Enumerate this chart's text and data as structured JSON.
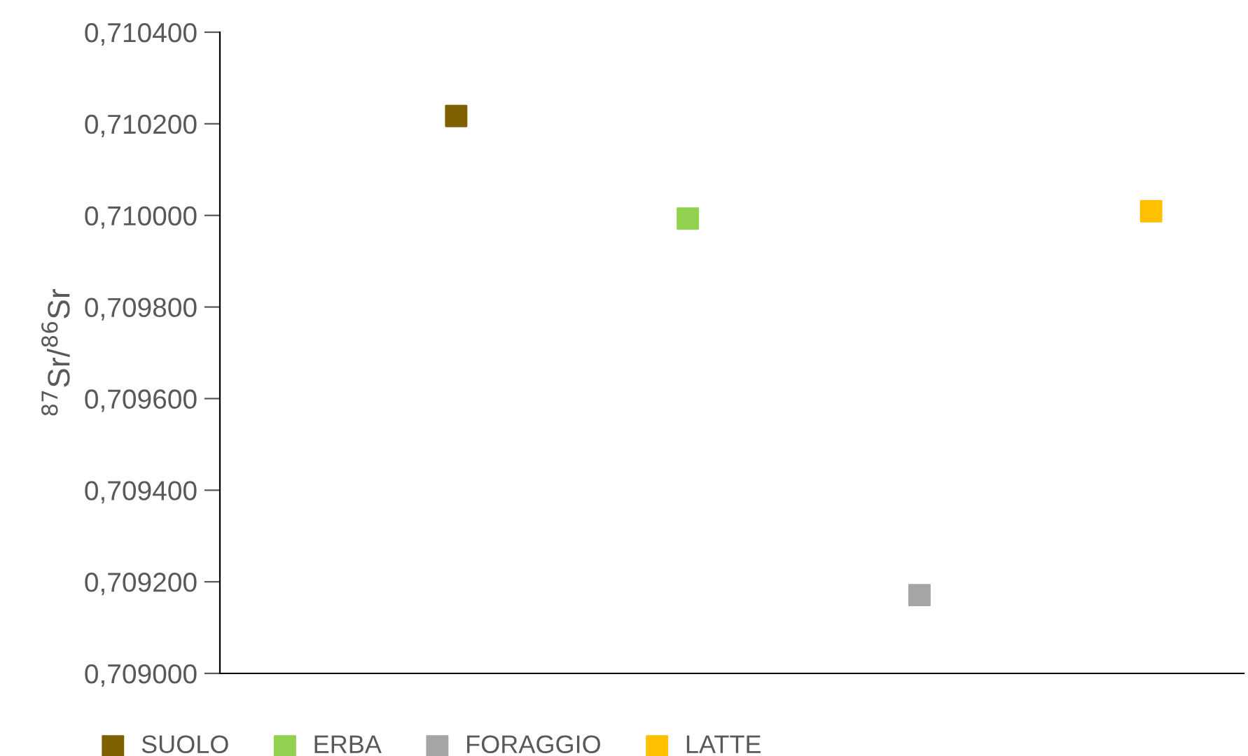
{
  "chart_data": {
    "type": "scatter",
    "ylabel": "$^{87}$Sr/$^{86}$Sr",
    "categories": [
      null,
      null,
      null,
      null
    ],
    "series": [
      {
        "name": "SUOLO",
        "color": "#7f6000",
        "values": [
          0.710217,
          null,
          null,
          null
        ]
      },
      {
        "name": "ERBA",
        "color": "#92d050",
        "values": [
          null,
          0.709993,
          null,
          null
        ]
      },
      {
        "name": "FORAGGIO",
        "color": "#a5a5a5",
        "values": [
          null,
          null,
          0.709171,
          null
        ]
      },
      {
        "name": "LATTE",
        "color": "#ffc000",
        "values": [
          null,
          null,
          null,
          0.710009
        ]
      }
    ],
    "ylim": [
      0.709,
      0.7104
    ],
    "yticks": [
      {
        "value": 0.709,
        "label": "0,709000"
      },
      {
        "value": 0.7092,
        "label": "0,709200"
      },
      {
        "value": 0.7094,
        "label": "0,709400"
      },
      {
        "value": 0.7096,
        "label": "0,709600"
      },
      {
        "value": 0.7098,
        "label": "0,709800"
      },
      {
        "value": 0.71,
        "label": "0,710000"
      },
      {
        "value": 0.7102,
        "label": "0,710200"
      },
      {
        "value": 0.7104,
        "label": "0,710400"
      }
    ],
    "marker": "square",
    "grid": false,
    "legend": "bottom"
  }
}
